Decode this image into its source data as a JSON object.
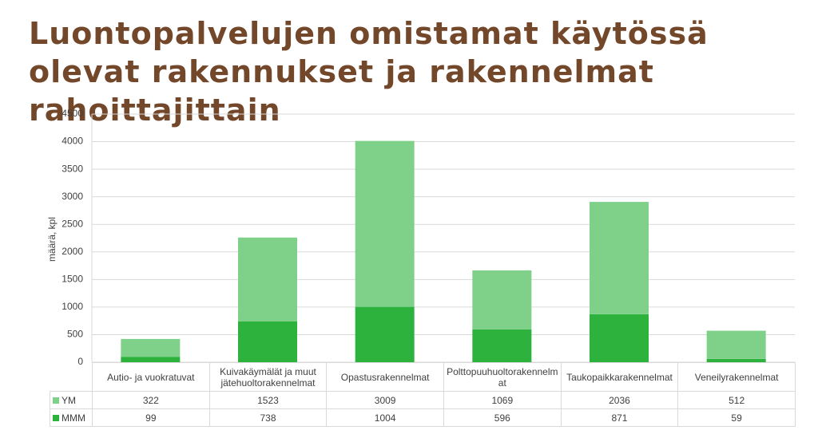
{
  "chart_data": {
    "type": "stacked_bar",
    "title": "Luontopalvelujen omistamat käytössä olevat rakennukset ja rakennelmat rahoittajittain",
    "y_label": "määrä, kpl",
    "categories": [
      "Autio- ja vuokratuvat",
      "Kuivakäymälät ja muut jätehuoltorakennelmat",
      "Opastusrakennelmat",
      "Polttopuuhuoltorakennelmat",
      "Taukopaikkarakennelmat",
      "Veneilyrakennelmat"
    ],
    "series": [
      {
        "name": "YM",
        "color": "#7fd18a",
        "values": [
          322,
          1523,
          3009,
          1069,
          2036,
          512
        ]
      },
      {
        "name": "MMM",
        "color": "#2db33d",
        "values": [
          99,
          738,
          1004,
          596,
          871,
          59
        ]
      }
    ],
    "ylim": [
      0,
      4500
    ],
    "yticks": [
      0,
      500,
      1000,
      1500,
      2000,
      2500,
      3000,
      3500,
      4000,
      4500
    ],
    "grid": true
  }
}
